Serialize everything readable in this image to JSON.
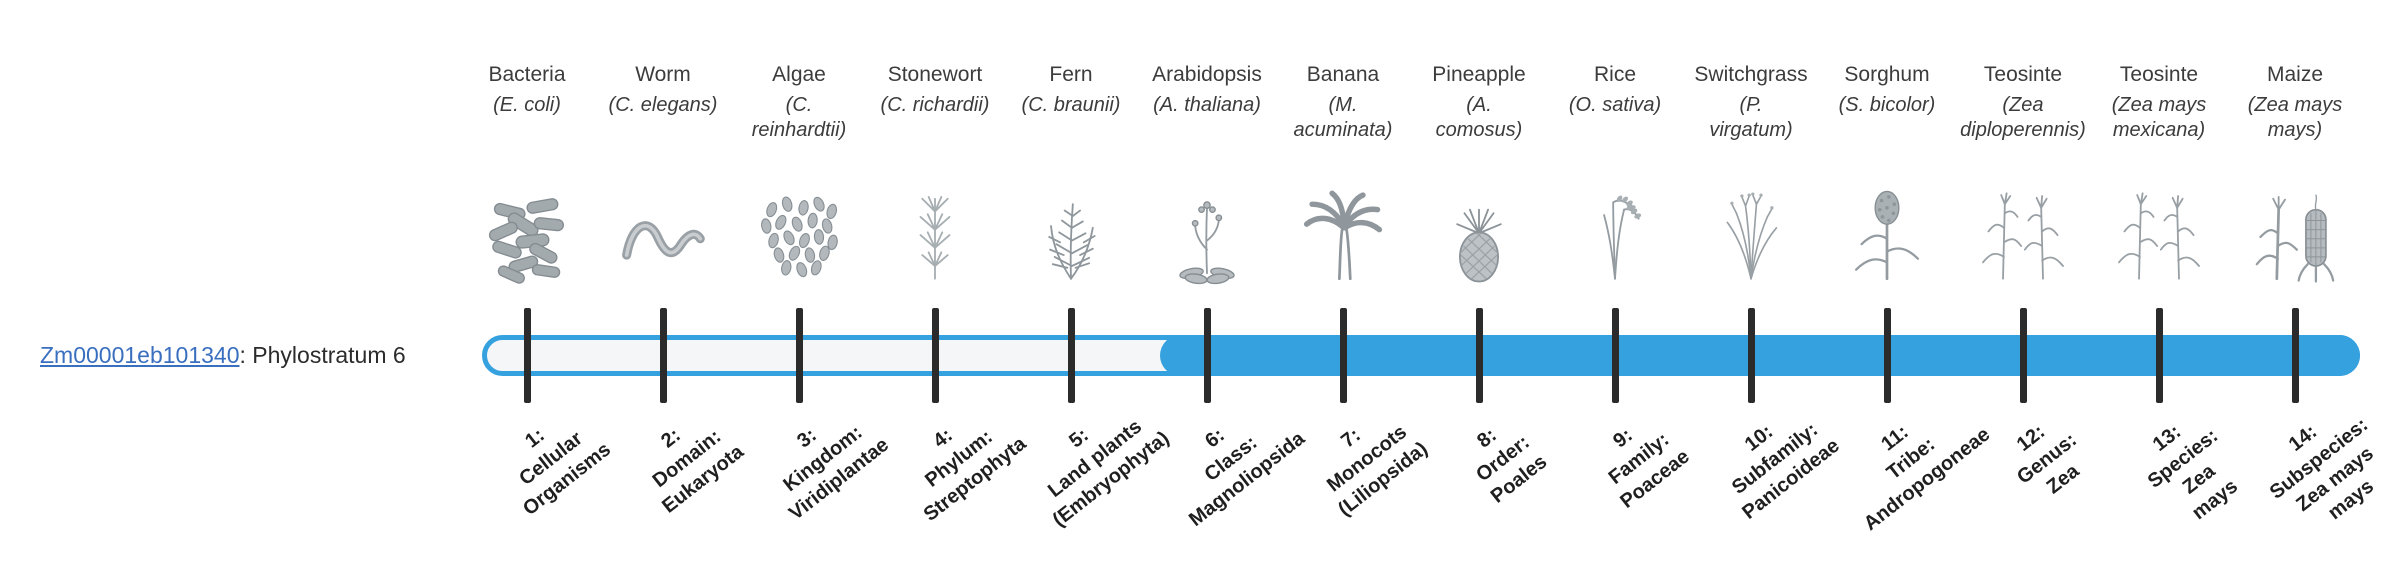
{
  "gene": {
    "id": "Zm00001eb101340",
    "suffix": ": Phylostratum 6",
    "phylostratum": 6
  },
  "bar": {
    "total_strata": 14,
    "filled_from_stratum": 6,
    "outline_color": "#35a1de",
    "fill_color": "#35a1de",
    "track_color": "#f5f6f7",
    "tick_color": "#2b2b2b",
    "link_color": "#3a6fc0"
  },
  "species": [
    {
      "name": "Bacteria",
      "sci": "(E. coli)",
      "icon": "bacteria-icon"
    },
    {
      "name": "Worm",
      "sci": "(C. elegans)",
      "icon": "worm-icon"
    },
    {
      "name": "Algae",
      "sci": "(C.\nreinhardtii)",
      "icon": "algae-icon"
    },
    {
      "name": "Stonewort",
      "sci": "(C. richardii)",
      "icon": "stonewort-icon"
    },
    {
      "name": "Fern",
      "sci": "(C. braunii)",
      "icon": "fern-icon"
    },
    {
      "name": "Arabidopsis",
      "sci": "(A. thaliana)",
      "icon": "arabidopsis-icon"
    },
    {
      "name": "Banana",
      "sci": "(M.\nacuminata)",
      "icon": "banana-icon"
    },
    {
      "name": "Pineapple",
      "sci": "(A.\ncomosus)",
      "icon": "pineapple-icon"
    },
    {
      "name": "Rice",
      "sci": "(O. sativa)",
      "icon": "rice-icon"
    },
    {
      "name": "Switchgrass",
      "sci": "(P.\nvirgatum)",
      "icon": "switchgrass-icon"
    },
    {
      "name": "Sorghum",
      "sci": "(S. bicolor)",
      "icon": "sorghum-icon"
    },
    {
      "name": "Teosinte",
      "sci": "(Zea\ndiploperennis)",
      "icon": "teosinte-icon"
    },
    {
      "name": "Teosinte",
      "sci": "(Zea mays\nmexicana)",
      "icon": "teosinte-icon"
    },
    {
      "name": "Maize",
      "sci": "(Zea mays\nmays)",
      "icon": "maize-icon"
    }
  ],
  "phylostrata": [
    {
      "num": 1,
      "lines": [
        "1:",
        "Cellular",
        "Organisms"
      ]
    },
    {
      "num": 2,
      "lines": [
        "2:",
        "Domain:",
        "Eukaryota"
      ]
    },
    {
      "num": 3,
      "lines": [
        "3:",
        "Kingdom:",
        "Viridiplantae"
      ]
    },
    {
      "num": 4,
      "lines": [
        "4:",
        "Phylum:",
        "Streptophyta"
      ]
    },
    {
      "num": 5,
      "lines": [
        "5:",
        "Land plants",
        "(Embryophyta)"
      ]
    },
    {
      "num": 6,
      "lines": [
        "6:",
        "Class:",
        "Magnoliopsida"
      ]
    },
    {
      "num": 7,
      "lines": [
        "7:",
        "Monocots",
        "(Liliopsida)"
      ]
    },
    {
      "num": 8,
      "lines": [
        "8:",
        "Order:",
        "Poales"
      ]
    },
    {
      "num": 9,
      "lines": [
        "9:",
        "Family:",
        "Poaceae"
      ]
    },
    {
      "num": 10,
      "lines": [
        "10:",
        "Subfamily:",
        "Panicoideae"
      ]
    },
    {
      "num": 11,
      "lines": [
        "11:",
        "Tribe:",
        "Andropogoneae"
      ]
    },
    {
      "num": 12,
      "lines": [
        "12:",
        "Genus:",
        "Zea"
      ]
    },
    {
      "num": 13,
      "lines": [
        "13:",
        "Species:",
        "Zea",
        "mays"
      ]
    },
    {
      "num": 14,
      "lines": [
        "14:",
        "Subspecies:",
        "Zea mays",
        "mays"
      ]
    }
  ]
}
